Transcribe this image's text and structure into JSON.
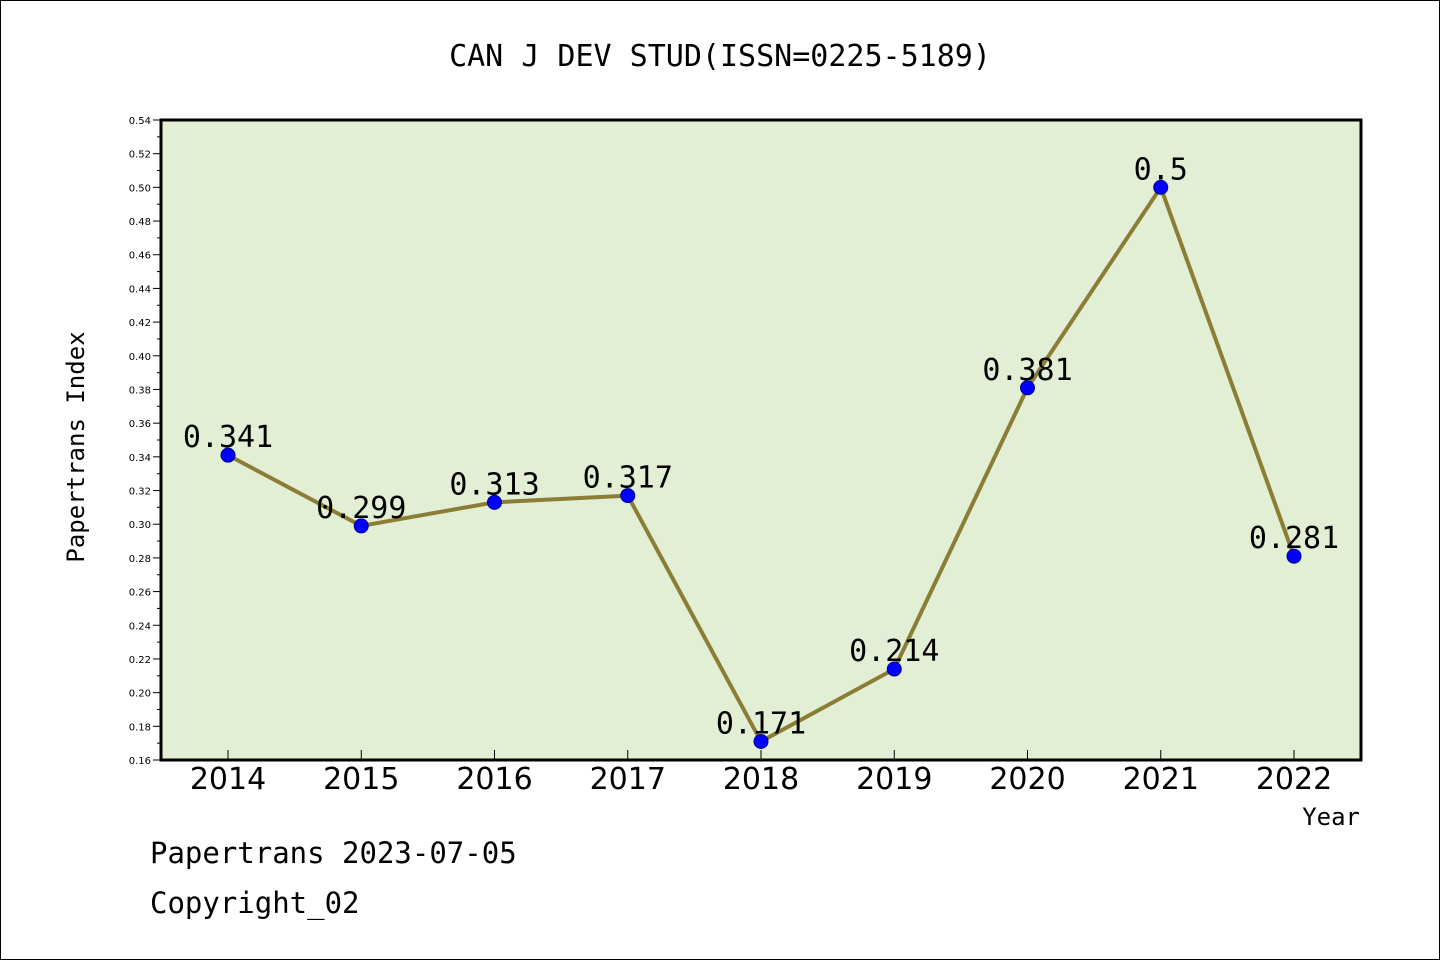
{
  "chart_data": {
    "type": "line",
    "title": "CAN J DEV STUD(ISSN=0225-5189)",
    "xlabel": "Year",
    "ylabel": "Papertrans Index",
    "categories": [
      "2014",
      "2015",
      "2016",
      "2017",
      "2018",
      "2019",
      "2020",
      "2021",
      "2022"
    ],
    "values": [
      0.341,
      0.299,
      0.313,
      0.317,
      0.171,
      0.214,
      0.381,
      0.5,
      0.281
    ],
    "data_labels": [
      "0.341",
      "0.299",
      "0.313",
      "0.317",
      "0.171",
      "0.214",
      "0.381",
      "0.5",
      "0.281"
    ],
    "ylim": [
      0.16,
      0.54
    ],
    "yticks": [
      "0.16",
      "0.18",
      "0.20",
      "0.22",
      "0.24",
      "0.26",
      "0.28",
      "0.30",
      "0.32",
      "0.34",
      "0.36",
      "0.38",
      "0.40",
      "0.42",
      "0.44",
      "0.46",
      "0.48",
      "0.50",
      "0.52",
      "0.54"
    ],
    "grid": false,
    "colors": {
      "plot_bg": "#e2efd4",
      "line": "#8b7d35",
      "marker": "#0000ff",
      "marker_edge": "#00008b"
    }
  },
  "footer": {
    "date_line": "Papertrans 2023-07-05",
    "copyright": "Copyright_02"
  }
}
